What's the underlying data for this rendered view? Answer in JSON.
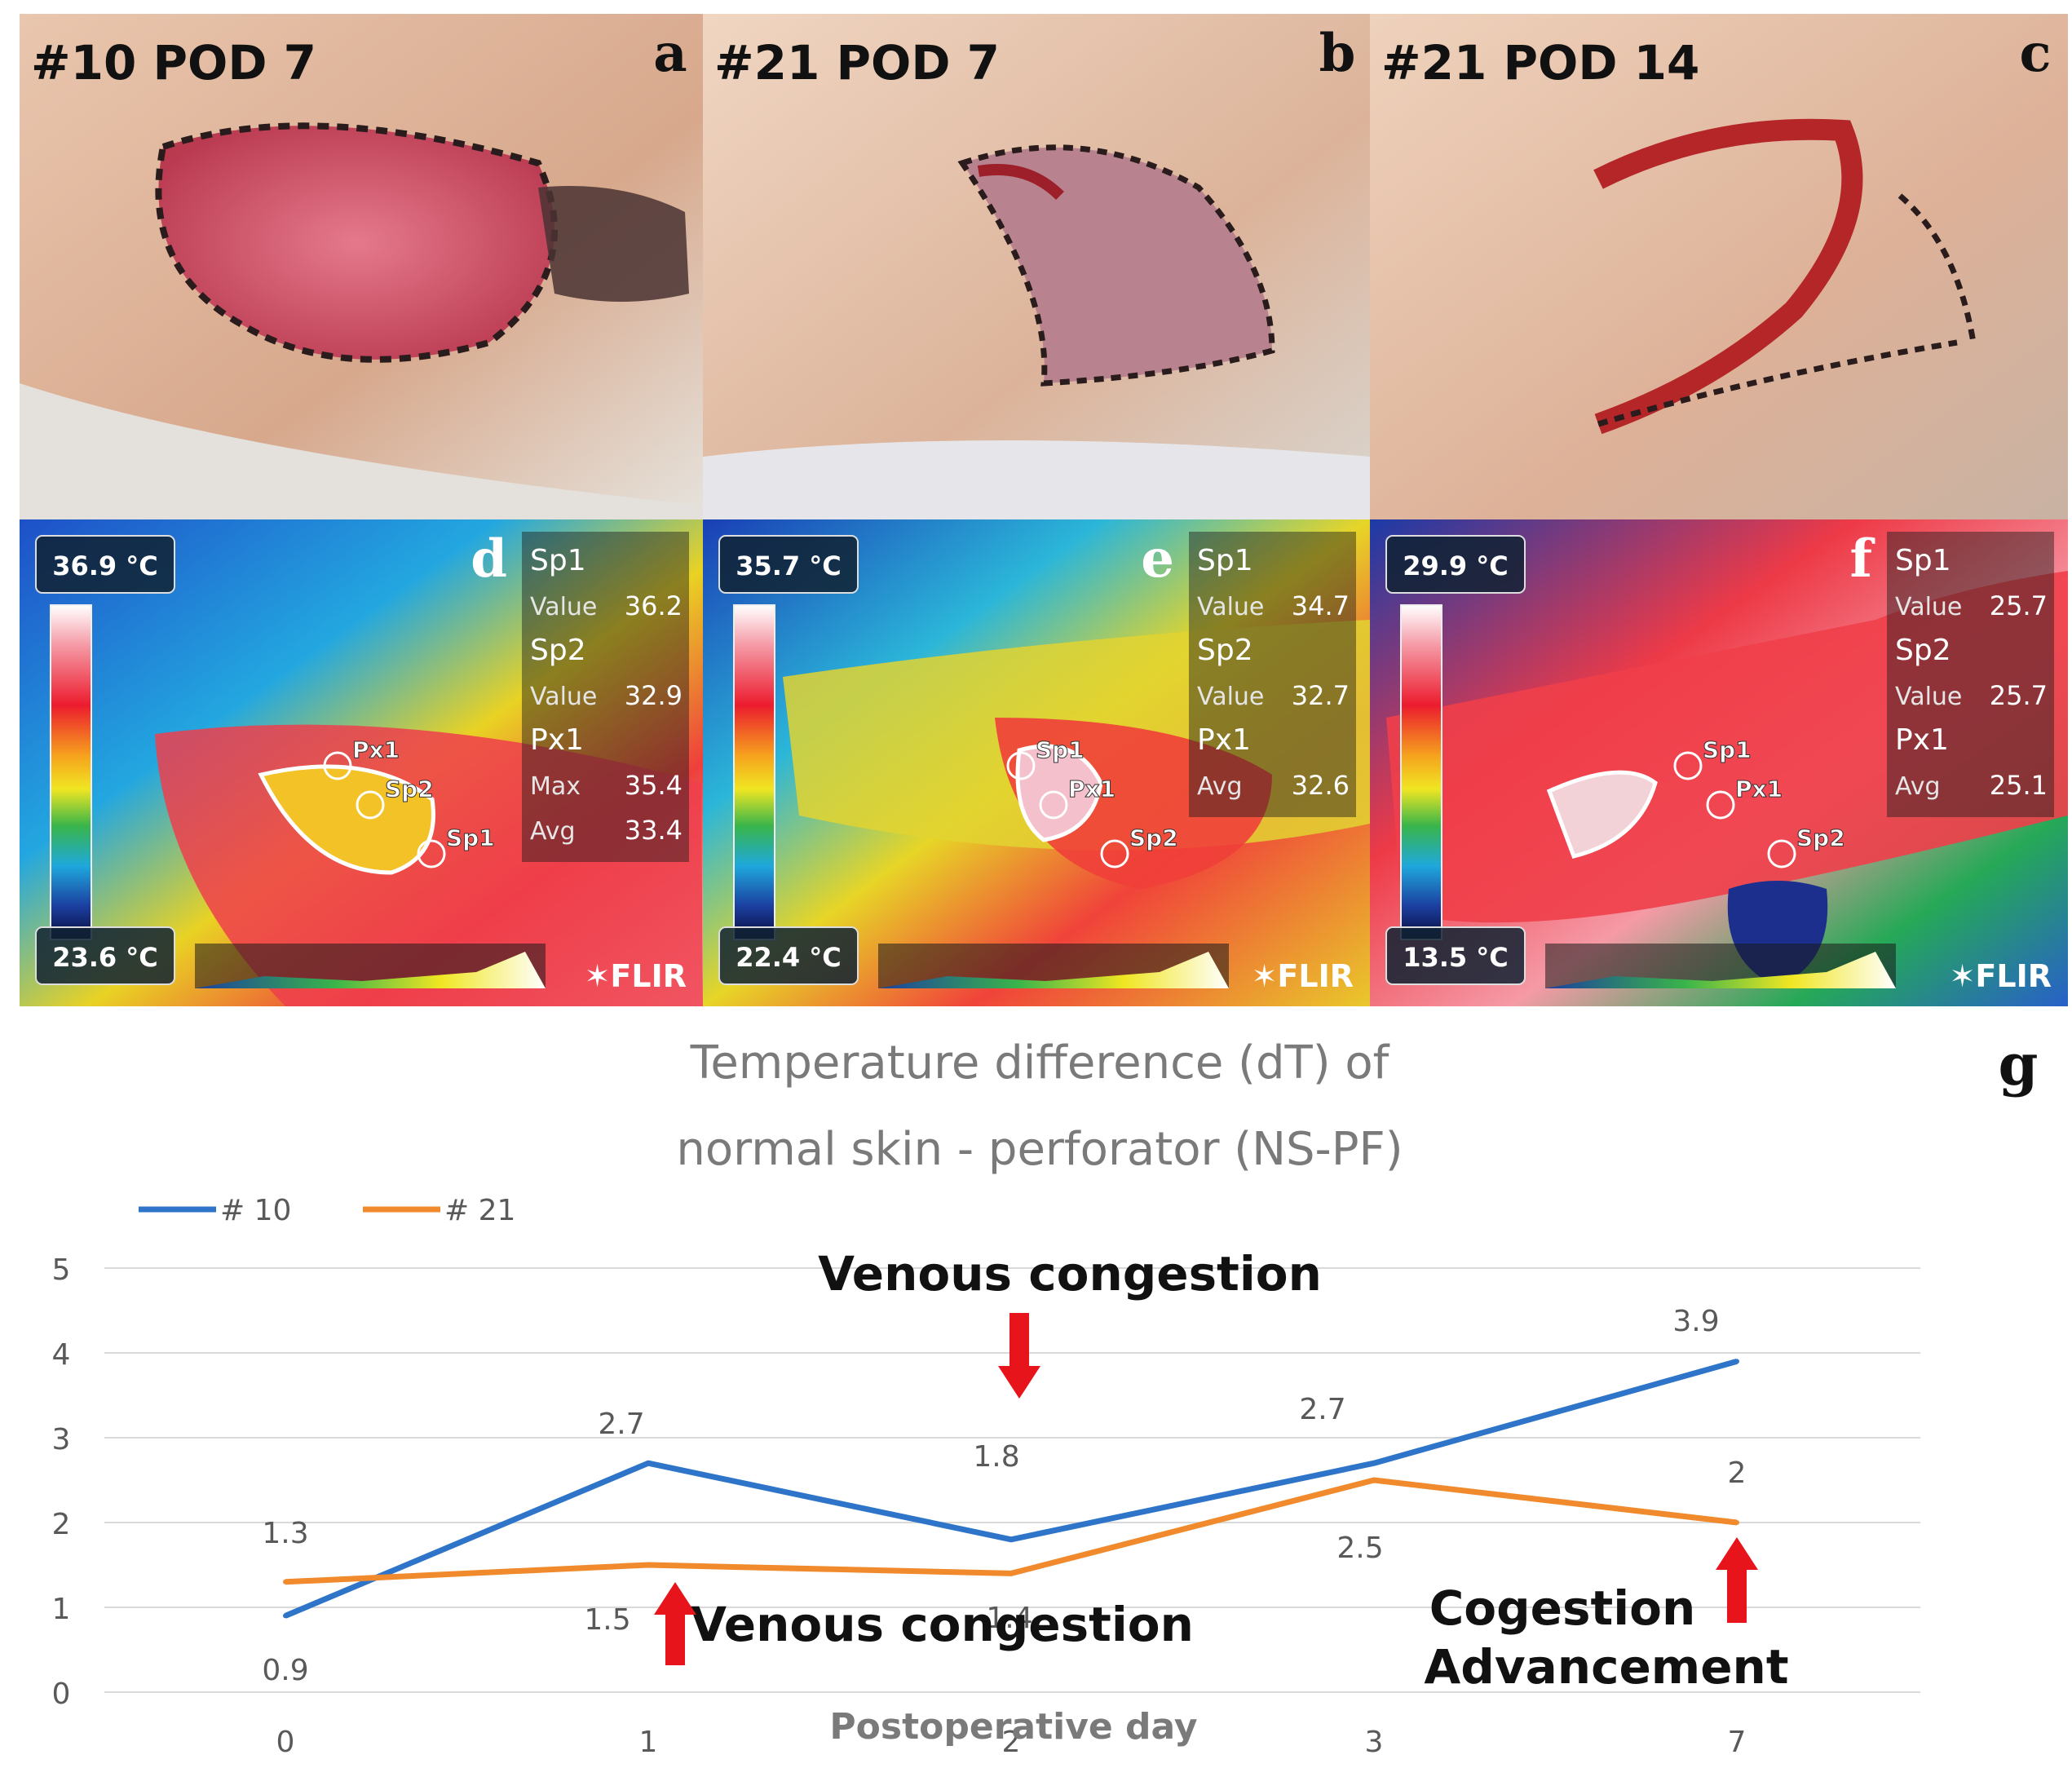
{
  "figure": {
    "panels": [
      {
        "letter": "a",
        "kind": "photo",
        "label": "#10 POD 7"
      },
      {
        "letter": "b",
        "kind": "photo",
        "label": "#21 POD 7"
      },
      {
        "letter": "c",
        "kind": "photo",
        "label": "#21 POD 14"
      },
      {
        "letter": "d",
        "kind": "thermal",
        "scale_max": "36.9",
        "scale_min": "23.6",
        "unit": "°C",
        "readouts": [
          {
            "label": "Sp1",
            "value": ""
          },
          {
            "label": "Value",
            "value": "36.2"
          },
          {
            "label": "Sp2",
            "value": ""
          },
          {
            "label": "Value",
            "value": "32.9"
          },
          {
            "label": "Px1",
            "value": ""
          },
          {
            "label": "Max",
            "value": "35.4"
          },
          {
            "label": "Avg",
            "value": "33.4"
          }
        ],
        "markers": [
          "Px1",
          "Sp2",
          "Sp1"
        ],
        "brand": "FLIR"
      },
      {
        "letter": "e",
        "kind": "thermal",
        "scale_max": "35.7",
        "scale_min": "22.4",
        "unit": "°C",
        "readouts": [
          {
            "label": "Sp1",
            "value": ""
          },
          {
            "label": "Value",
            "value": "34.7"
          },
          {
            "label": "Sp2",
            "value": ""
          },
          {
            "label": "Value",
            "value": "32.7"
          },
          {
            "label": "Px1",
            "value": ""
          },
          {
            "label": "Avg",
            "value": "32.6"
          }
        ],
        "markers": [
          "Sp1",
          "Px1",
          "Sp2"
        ],
        "brand": "FLIR"
      },
      {
        "letter": "f",
        "kind": "thermal",
        "scale_max": "29.9",
        "scale_min": "13.5",
        "unit": "°C",
        "readouts": [
          {
            "label": "Sp1",
            "value": ""
          },
          {
            "label": "Value",
            "value": "25.7"
          },
          {
            "label": "Sp2",
            "value": ""
          },
          {
            "label": "Value",
            "value": "25.7"
          },
          {
            "label": "Px1",
            "value": ""
          },
          {
            "label": "Avg",
            "value": "25.1"
          }
        ],
        "markers": [
          "Sp1",
          "Px1",
          "Sp2"
        ],
        "brand": "FLIR"
      }
    ],
    "chart_letter": "g"
  },
  "chart_data": {
    "type": "line",
    "title": "Temperature difference (dT) of normal skin - perforator (NS-PF)",
    "title_lines": [
      "Temperature difference (dT) of",
      "normal skin - perforator (NS-PF)"
    ],
    "xlabel": "Postoperative day",
    "ylabel": "",
    "categories": [
      "0",
      "1",
      "2",
      "3",
      "7"
    ],
    "ylim": [
      0,
      5
    ],
    "yticks": [
      "0",
      "1",
      "2",
      "3",
      "4",
      "5"
    ],
    "grid": true,
    "legend_position": "top-left",
    "series": [
      {
        "name": "# 10",
        "color": "#2e75c9",
        "values": [
          0.9,
          2.7,
          1.8,
          2.7,
          3.9
        ],
        "labels": [
          "0.9",
          "2.7",
          "1.8",
          "2.7",
          "3.9"
        ]
      },
      {
        "name": "# 21",
        "color": "#f08a2c",
        "values": [
          1.3,
          1.5,
          1.4,
          2.5,
          2.0
        ],
        "labels": [
          "1.3",
          "1.5",
          "1.4",
          "2.5",
          "2"
        ]
      }
    ],
    "annotations": [
      {
        "text": "Venous congestion",
        "arrow": "down",
        "color": "#e8141b"
      },
      {
        "text": "Venous congestion",
        "arrow": "up",
        "color": "#e8141b"
      },
      {
        "text": "Cogestion",
        "arrow": "up",
        "color": "#e8141b"
      },
      {
        "text": "Advancement",
        "arrow": "none",
        "color": "#e8141b"
      }
    ]
  }
}
